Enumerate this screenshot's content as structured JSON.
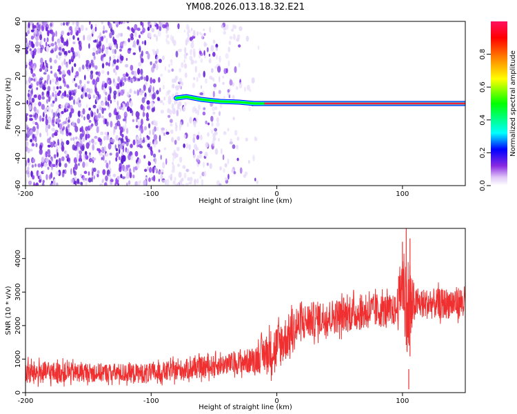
{
  "title": "YM08.2026.013.18.32.E21",
  "chart_data": [
    {
      "type": "heatmap",
      "name": "spectrogram",
      "xlabel": "Height of straight line (km)",
      "ylabel": "Frequency (Hz)",
      "xlim": [
        -200,
        150
      ],
      "ylim": [
        -60,
        60
      ],
      "x_ticks": [
        -200,
        -100,
        0,
        100
      ],
      "x_tick_labels": [
        "-200",
        "-100",
        "0",
        "100"
      ],
      "y_ticks": [
        -60,
        -40,
        -20,
        0,
        20,
        40,
        60
      ],
      "y_tick_labels": [
        "-60",
        "-40",
        "-20",
        "0",
        "20",
        "40",
        "60"
      ],
      "colorbar": {
        "label": "Normalized spectral amplitude",
        "range": [
          0,
          1
        ],
        "ticks": [
          0.0,
          0.2,
          0.4,
          0.6,
          0.8
        ],
        "tick_labels": [
          "0.0",
          "0.2",
          "0.4",
          "0.6",
          "0.8"
        ],
        "colors": [
          "#ffffff",
          "#e8d8f8",
          "#8a2be2",
          "#0000ff",
          "#00ffff",
          "#00ff00",
          "#ffff00",
          "#ff8000",
          "#ff0000",
          "#ff1060"
        ]
      },
      "ridge": {
        "description": "dominant near-zero-frequency ridge",
        "points": [
          {
            "x": -80,
            "y": 4
          },
          {
            "x": -72,
            "y": 5
          },
          {
            "x": -60,
            "y": 3
          },
          {
            "x": -45,
            "y": 1.5
          },
          {
            "x": -30,
            "y": 1
          },
          {
            "x": -18,
            "y": 0
          },
          {
            "x": 0,
            "y": 0
          },
          {
            "x": 50,
            "y": 0
          },
          {
            "x": 100,
            "y": 0
          },
          {
            "x": 150,
            "y": 0
          }
        ]
      },
      "noise_region": {
        "x_from": -200,
        "x_to": -20,
        "description": "broadband low-amplitude purple speckle"
      }
    },
    {
      "type": "line",
      "name": "snr",
      "color": "#f03030",
      "xlabel": "Height of straight line (km)",
      "ylabel": "SNR (10 * v/v)",
      "xlim": [
        -200,
        150
      ],
      "ylim": [
        0,
        4900
      ],
      "x_ticks": [
        -200,
        -100,
        0,
        100
      ],
      "x_tick_labels": [
        "-200",
        "-100",
        "0",
        "100"
      ],
      "y_ticks": [
        0,
        1000,
        2000,
        3000,
        4000
      ],
      "y_tick_labels": [
        "0",
        "1000",
        "2000",
        "3000",
        "4000"
      ],
      "envelope": {
        "x": [
          -200,
          -150,
          -100,
          -60,
          -40,
          -20,
          0,
          20,
          40,
          60,
          80,
          95,
          100,
          105,
          110,
          130,
          150
        ],
        "lower": [
          100,
          200,
          150,
          300,
          400,
          400,
          300,
          1300,
          1500,
          1600,
          1700,
          1800,
          1900,
          100,
          2000,
          2000,
          2000
        ],
        "upper": [
          1100,
          1000,
          1000,
          1200,
          1300,
          1500,
          2400,
          2900,
          3000,
          3100,
          3200,
          3100,
          4900,
          4800,
          3300,
          3300,
          3400
        ]
      },
      "spikes": [
        {
          "x": 98,
          "value": 3500
        },
        {
          "x": 100,
          "value": 4500
        },
        {
          "x": 103,
          "value": 4900
        },
        {
          "x": 105,
          "value": 100
        },
        {
          "x": 106,
          "value": 4600
        }
      ]
    }
  ]
}
